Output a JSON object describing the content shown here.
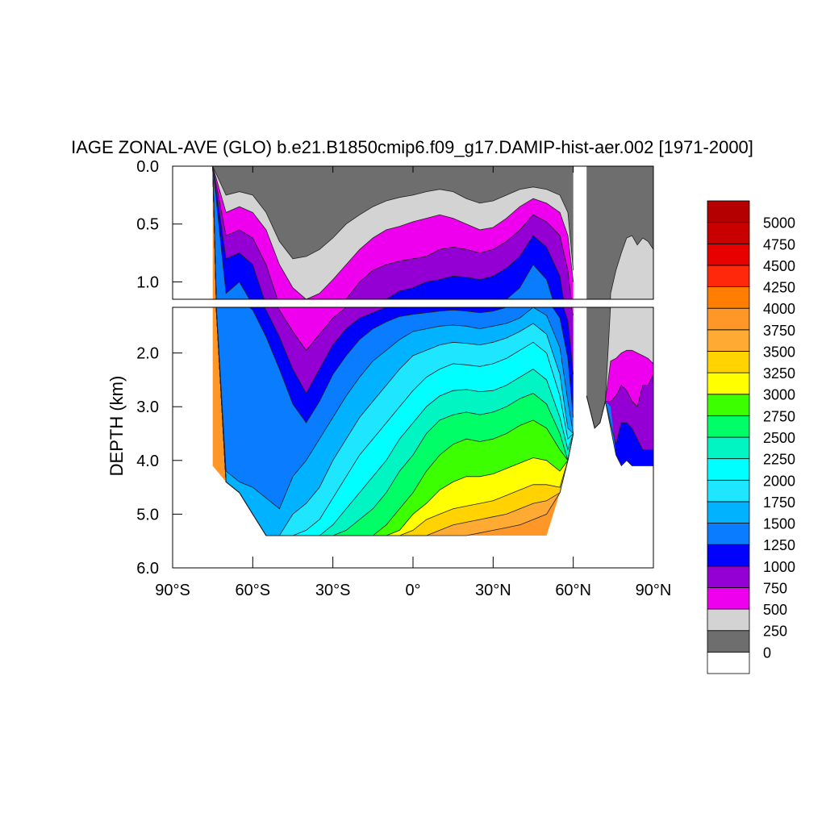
{
  "chart_data": {
    "type": "heatmap",
    "title": "IAGE ZONAL-AVE (GLO) b.e21.B1850cmip6.f09_g17.DAMIP-hist-aer.002 [1971-2000]",
    "xlabel": "",
    "ylabel": "DEPTH (km)",
    "xlim": [
      -90,
      90
    ],
    "ylim_upper": [
      0.0,
      1.15
    ],
    "ylim_lower": [
      1.15,
      6.0
    ],
    "x_ticks": [
      -90,
      -60,
      -30,
      0,
      30,
      60,
      90
    ],
    "x_tick_labels": [
      "90°S",
      "60°S",
      "30°S",
      "0°",
      "30°N",
      "60°N",
      "90°N"
    ],
    "y_ticks_upper": [
      0.0,
      0.5,
      1.0
    ],
    "y_tick_labels_upper": [
      "0.0",
      "0.5",
      "1.0"
    ],
    "y_ticks_lower": [
      2.0,
      3.0,
      4.0,
      5.0,
      6.0
    ],
    "y_tick_labels_lower": [
      "2.0",
      "3.0",
      "4.0",
      "5.0",
      "6.0"
    ],
    "grid": false,
    "levels": [
      0,
      250,
      500,
      750,
      1000,
      1250,
      1500,
      1750,
      2000,
      2250,
      2500,
      2750,
      3000,
      3250,
      3500,
      3750,
      4000,
      4250,
      4500,
      4750,
      5000
    ],
    "level_labels": [
      "0",
      "250",
      "500",
      "750",
      "1000",
      "1250",
      "1500",
      "1750",
      "2000",
      "2250",
      "2500",
      "2750",
      "3000",
      "3250",
      "3500",
      "3750",
      "4000",
      "4250",
      "4500",
      "4750",
      "5000"
    ],
    "colors": [
      "#ffffff",
      "#6e6e6e",
      "#d3d3d3",
      "#ee00ee",
      "#9400d3",
      "#0000ff",
      "#0a7cff",
      "#00b2ff",
      "#1ee6ff",
      "#00ffff",
      "#00f5c3",
      "#00ff66",
      "#3cff00",
      "#ffff00",
      "#ffd200",
      "#ffaa32",
      "#ff9628",
      "#ff7d00",
      "#ff280a",
      "#e60000",
      "#c80000",
      "#b40000"
    ],
    "legend_position": "right",
    "region_bounds": {
      "lat": [
        -75,
        -70,
        -65,
        -60,
        -55,
        -50,
        -45,
        -40,
        -35,
        -30,
        -25,
        -20,
        -15,
        -10,
        -5,
        0,
        5,
        10,
        15,
        20,
        25,
        30,
        35,
        40,
        45,
        50,
        55,
        58,
        60
      ],
      "bottom_depth": [
        4.1,
        4.4,
        4.6,
        5.0,
        5.4,
        5.4,
        5.4,
        5.4,
        5.4,
        5.4,
        5.4,
        5.4,
        5.4,
        5.4,
        5.4,
        5.4,
        5.4,
        5.4,
        5.4,
        5.4,
        5.4,
        5.4,
        5.4,
        5.4,
        5.4,
        5.4,
        4.6,
        4.0,
        3.5
      ]
    },
    "contour_depths": {
      "lat": [
        -75,
        -70,
        -65,
        -60,
        -55,
        -50,
        -45,
        -40,
        -35,
        -30,
        -25,
        -20,
        -15,
        -10,
        -5,
        0,
        5,
        10,
        15,
        20,
        25,
        30,
        35,
        40,
        45,
        50,
        55,
        58,
        60
      ],
      "series": [
        {
          "level": 250,
          "depth": [
            0.0,
            0.25,
            0.22,
            0.25,
            0.4,
            0.65,
            0.8,
            0.78,
            0.72,
            0.62,
            0.5,
            0.42,
            0.35,
            0.3,
            0.27,
            0.25,
            0.22,
            0.2,
            0.22,
            0.28,
            0.32,
            0.3,
            0.25,
            0.2,
            0.18,
            0.2,
            0.25,
            0.4,
            0.9
          ]
        },
        {
          "level": 500,
          "depth": [
            0.0,
            0.4,
            0.35,
            0.4,
            0.55,
            0.85,
            1.05,
            1.15,
            1.1,
            0.98,
            0.85,
            0.72,
            0.62,
            0.55,
            0.52,
            0.48,
            0.45,
            0.42,
            0.45,
            0.5,
            0.55,
            0.53,
            0.45,
            0.35,
            0.28,
            0.32,
            0.4,
            0.6,
            1.0
          ]
        },
        {
          "level": 750,
          "depth": [
            0.0,
            0.6,
            0.55,
            0.62,
            0.85,
            1.2,
            1.6,
            1.95,
            1.65,
            1.35,
            1.15,
            1.0,
            0.9,
            0.85,
            0.82,
            0.8,
            0.78,
            0.72,
            0.7,
            0.72,
            0.75,
            0.72,
            0.65,
            0.55,
            0.42,
            0.48,
            0.6,
            0.9,
            1.3
          ]
        },
        {
          "level": 1000,
          "depth": [
            0.0,
            0.8,
            0.75,
            0.85,
            1.2,
            1.7,
            2.3,
            2.75,
            2.3,
            1.85,
            1.55,
            1.35,
            1.25,
            1.15,
            1.08,
            1.05,
            1.0,
            0.98,
            0.95,
            0.96,
            0.98,
            0.95,
            0.88,
            0.78,
            0.6,
            0.7,
            0.95,
            1.4,
            2.4
          ]
        },
        {
          "level": 1250,
          "depth": [
            0.0,
            1.1,
            1.0,
            1.2,
            1.7,
            2.3,
            2.95,
            3.3,
            2.9,
            2.4,
            2.05,
            1.75,
            1.55,
            1.42,
            1.32,
            1.28,
            1.25,
            1.22,
            1.2,
            1.22,
            1.25,
            1.22,
            1.15,
            1.05,
            0.85,
            0.98,
            1.35,
            2.1,
            3.2
          ]
        },
        {
          "level": 1500,
          "depth": [
            0.0,
            4.2,
            4.4,
            4.5,
            4.7,
            4.9,
            4.3,
            4.0,
            3.6,
            3.2,
            2.8,
            2.45,
            2.15,
            1.95,
            1.75,
            1.6,
            1.55,
            1.5,
            1.48,
            1.5,
            1.55,
            1.5,
            1.45,
            1.35,
            1.15,
            1.3,
            1.9,
            2.9,
            3.5
          ]
        },
        {
          "level": 1750,
          "depth": [
            0.0,
            5.4,
            5.4,
            5.4,
            5.4,
            5.4,
            5.0,
            4.8,
            4.5,
            4.0,
            3.6,
            3.2,
            2.9,
            2.6,
            2.3,
            2.05,
            1.95,
            1.85,
            1.8,
            1.82,
            1.85,
            1.8,
            1.72,
            1.6,
            1.45,
            1.65,
            2.4,
            3.4,
            3.5
          ]
        },
        {
          "level": 2000,
          "depth": [
            0.0,
            5.4,
            5.4,
            5.4,
            5.4,
            5.4,
            5.4,
            5.3,
            5.1,
            4.7,
            4.3,
            3.9,
            3.6,
            3.3,
            3.0,
            2.7,
            2.45,
            2.3,
            2.2,
            2.22,
            2.25,
            2.2,
            2.1,
            1.95,
            1.8,
            2.0,
            2.8,
            3.6,
            3.5
          ]
        },
        {
          "level": 2250,
          "depth": [
            0.0,
            5.4,
            5.4,
            5.4,
            5.4,
            5.4,
            5.4,
            5.4,
            5.4,
            5.2,
            4.9,
            4.6,
            4.3,
            4.0,
            3.6,
            3.3,
            3.0,
            2.8,
            2.7,
            2.68,
            2.72,
            2.7,
            2.6,
            2.45,
            2.3,
            2.5,
            3.2,
            3.8,
            3.5
          ]
        },
        {
          "level": 2500,
          "depth": [
            0.0,
            5.4,
            5.4,
            5.4,
            5.4,
            5.4,
            5.4,
            5.4,
            5.4,
            5.4,
            5.3,
            5.1,
            4.9,
            4.6,
            4.2,
            3.9,
            3.5,
            3.25,
            3.15,
            3.1,
            3.15,
            3.1,
            3.0,
            2.85,
            2.75,
            2.95,
            3.5,
            4.0,
            3.5
          ]
        },
        {
          "level": 2750,
          "depth": [
            0.0,
            5.4,
            5.4,
            5.4,
            5.4,
            5.4,
            5.4,
            5.4,
            5.4,
            5.4,
            5.4,
            5.4,
            5.4,
            5.2,
            4.9,
            4.6,
            4.2,
            3.9,
            3.7,
            3.6,
            3.65,
            3.6,
            3.5,
            3.35,
            3.25,
            3.4,
            3.8,
            4.1,
            3.5
          ]
        },
        {
          "level": 3000,
          "depth": [
            0.0,
            5.4,
            5.4,
            5.4,
            5.4,
            5.4,
            5.4,
            5.4,
            5.4,
            5.4,
            5.4,
            5.4,
            5.4,
            5.4,
            5.3,
            5.0,
            4.8,
            4.55,
            4.4,
            4.3,
            4.3,
            4.25,
            4.15,
            4.05,
            3.95,
            4.0,
            4.2,
            4.3,
            3.5
          ]
        },
        {
          "level": 3250,
          "depth": [
            0.0,
            5.4,
            5.4,
            5.4,
            5.4,
            5.4,
            5.4,
            5.4,
            5.4,
            5.4,
            5.4,
            5.4,
            5.4,
            5.4,
            5.4,
            5.3,
            5.1,
            5.0,
            4.9,
            4.85,
            4.8,
            4.75,
            4.65,
            4.55,
            4.45,
            4.45,
            4.5,
            4.5,
            3.5
          ]
        },
        {
          "level": 3500,
          "depth": [
            0.0,
            5.4,
            5.4,
            5.4,
            5.4,
            5.4,
            5.4,
            5.4,
            5.4,
            5.4,
            5.4,
            5.4,
            5.4,
            5.4,
            5.4,
            5.4,
            5.4,
            5.3,
            5.2,
            5.15,
            5.1,
            5.05,
            5.0,
            4.9,
            4.8,
            4.75,
            4.7,
            4.7,
            3.5
          ]
        },
        {
          "level": 3750,
          "depth": [
            0.0,
            5.4,
            5.4,
            5.4,
            5.4,
            5.4,
            5.4,
            5.4,
            5.4,
            5.4,
            5.4,
            5.4,
            5.4,
            5.4,
            5.4,
            5.4,
            5.4,
            5.4,
            5.4,
            5.4,
            5.35,
            5.3,
            5.25,
            5.2,
            5.1,
            5.0,
            4.9,
            4.85,
            3.5
          ]
        }
      ]
    },
    "arctic_bounds": {
      "lat": [
        65,
        68,
        70,
        72,
        74,
        76,
        78,
        80,
        82,
        84,
        86,
        88,
        90
      ],
      "top_depth": [
        0.0,
        0.0,
        0.0,
        0.0,
        0.0,
        0.0,
        0.0,
        0.0,
        0.0,
        0.0,
        0.0,
        0.0,
        0.0
      ],
      "bottom_depth": [
        2.8,
        3.4,
        3.3,
        2.9,
        3.0,
        3.9,
        4.1,
        4.0,
        4.1,
        4.1,
        4.1,
        4.1,
        4.1
      ]
    },
    "arctic_contours": {
      "lat": [
        65,
        68,
        70,
        72,
        74,
        76,
        78,
        80,
        82,
        84,
        86,
        88,
        90
      ],
      "series": [
        {
          "level": 250,
          "depth": [
            2.8,
            3.4,
            3.3,
            2.9,
            1.1,
            0.9,
            0.75,
            0.62,
            0.6,
            0.68,
            0.62,
            0.65,
            0.72
          ]
        },
        {
          "level": 500,
          "depth": [
            2.8,
            3.4,
            3.3,
            2.9,
            2.15,
            2.1,
            2.0,
            1.95,
            1.95,
            2.0,
            2.05,
            2.1,
            2.2
          ]
        },
        {
          "level": 750,
          "depth": [
            2.8,
            3.4,
            3.3,
            2.9,
            2.9,
            2.8,
            2.6,
            2.7,
            2.9,
            3.0,
            2.6,
            2.6,
            2.4
          ]
        },
        {
          "level": 1000,
          "depth": [
            2.8,
            3.4,
            3.3,
            2.9,
            3.3,
            3.7,
            3.3,
            3.3,
            3.4,
            3.6,
            3.8,
            3.8,
            3.8
          ]
        },
        {
          "level": 1250,
          "depth": [
            2.8,
            3.4,
            3.3,
            2.9,
            3.4,
            3.9,
            4.1,
            4.0,
            4.1,
            4.1,
            4.1,
            4.1,
            4.1
          ]
        }
      ]
    }
  }
}
